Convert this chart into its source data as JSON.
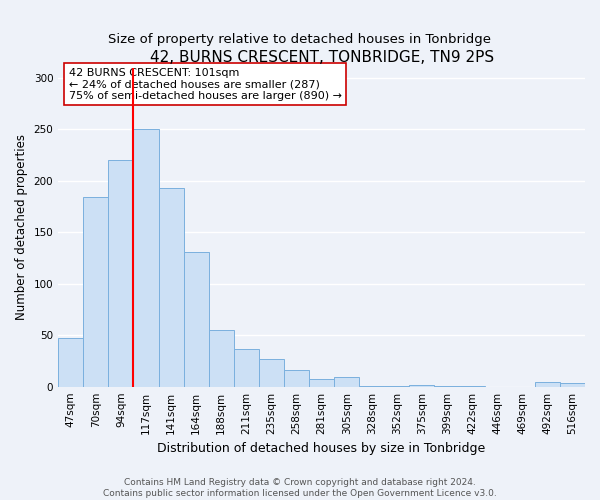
{
  "title": "42, BURNS CRESCENT, TONBRIDGE, TN9 2PS",
  "subtitle": "Size of property relative to detached houses in Tonbridge",
  "xlabel": "Distribution of detached houses by size in Tonbridge",
  "ylabel": "Number of detached properties",
  "bar_labels": [
    "47sqm",
    "70sqm",
    "94sqm",
    "117sqm",
    "141sqm",
    "164sqm",
    "188sqm",
    "211sqm",
    "235sqm",
    "258sqm",
    "281sqm",
    "305sqm",
    "328sqm",
    "352sqm",
    "375sqm",
    "399sqm",
    "422sqm",
    "446sqm",
    "469sqm",
    "492sqm",
    "516sqm"
  ],
  "bar_values": [
    47,
    184,
    220,
    250,
    193,
    131,
    55,
    37,
    27,
    16,
    7,
    9,
    1,
    1,
    2,
    1,
    1,
    0,
    0,
    5,
    4
  ],
  "bar_color": "#cce0f5",
  "bar_edge_color": "#7ab0de",
  "ylim": [
    0,
    310
  ],
  "yticks": [
    0,
    50,
    100,
    150,
    200,
    250,
    300
  ],
  "red_line_x": 2.5,
  "annotation_title": "42 BURNS CRESCENT: 101sqm",
  "annotation_line1": "← 24% of detached houses are smaller (287)",
  "annotation_line2": "75% of semi-detached houses are larger (890) →",
  "footer_line1": "Contains HM Land Registry data © Crown copyright and database right 2024.",
  "footer_line2": "Contains public sector information licensed under the Open Government Licence v3.0.",
  "background_color": "#eef2f9",
  "grid_color": "#ffffff",
  "title_fontsize": 11,
  "subtitle_fontsize": 9.5,
  "xlabel_fontsize": 9,
  "ylabel_fontsize": 8.5,
  "footer_fontsize": 6.5,
  "tick_fontsize": 7.5,
  "annot_fontsize": 8
}
